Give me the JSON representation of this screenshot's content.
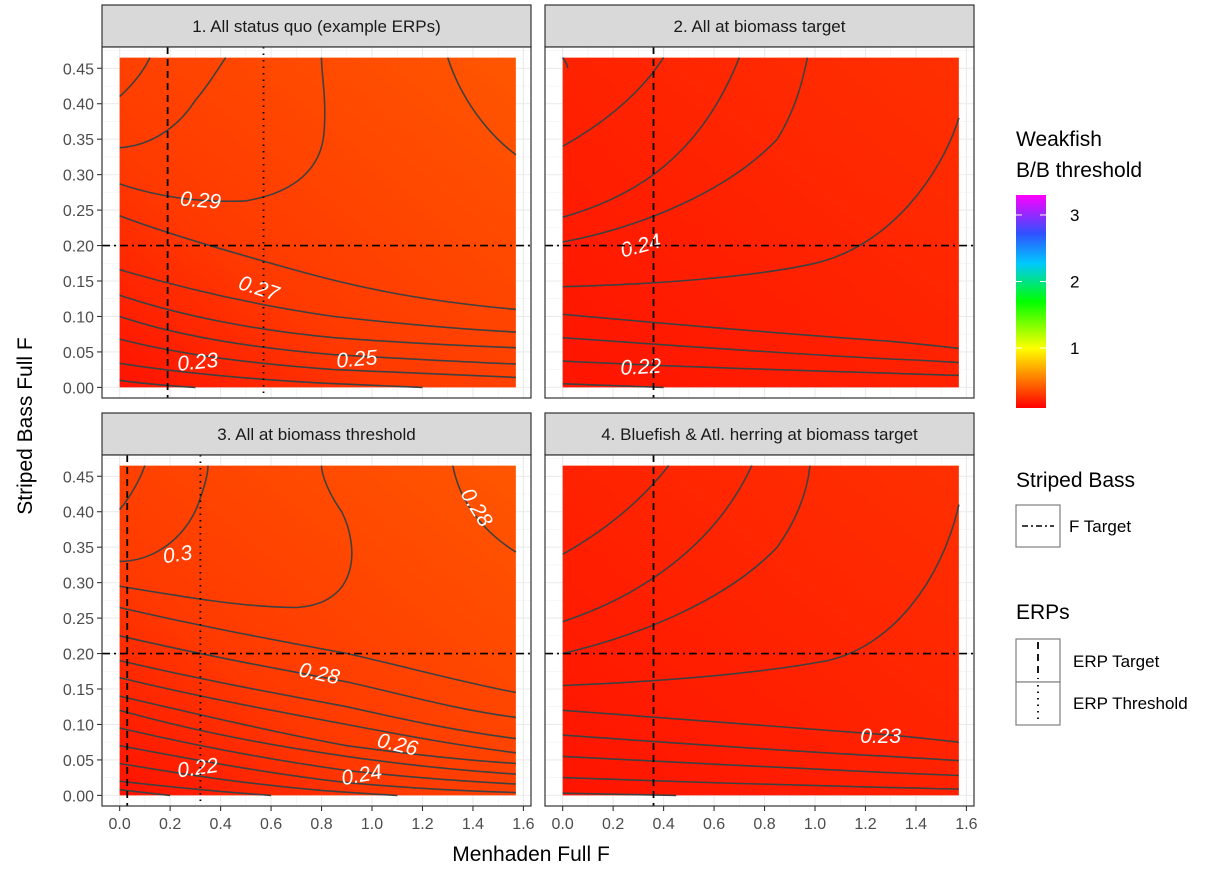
{
  "chart_data": {
    "type": "heatmap",
    "xlabel": "Menhaden Full F",
    "ylabel": "Striped Bass Full F",
    "x_ticks": [
      "0.0",
      "0.2",
      "0.4",
      "0.6",
      "0.8",
      "1.0",
      "1.2",
      "1.4",
      "1.6"
    ],
    "y_ticks": [
      "0.00",
      "0.05",
      "0.10",
      "0.15",
      "0.20",
      "0.25",
      "0.30",
      "0.35",
      "0.40",
      "0.45"
    ],
    "xlim": [
      -0.07,
      1.63
    ],
    "ylim": [
      -0.015,
      0.48
    ],
    "grid": true,
    "striped_bass_f_target": 0.2,
    "legend": {
      "colorbar_title_line1": "Weakfish",
      "colorbar_title_line2": "B/B threshold",
      "colorbar_ticks": [
        "1",
        "2",
        "3"
      ],
      "colorbar_tick_values": [
        1,
        2,
        3
      ],
      "colorbar_range": [
        0.1,
        3.3
      ],
      "colorbar_colors": [
        "#ff0000",
        "#ff7f00",
        "#ffff00",
        "#00ff00",
        "#0080ff",
        "#3050ff",
        "#ff00ff"
      ],
      "striped_bass_title": "Striped Bass",
      "striped_bass_item": "F Target",
      "erps_title": "ERPs",
      "erps_items": [
        "ERP Target",
        "ERP Threshold"
      ],
      "placement": "right"
    },
    "panels": [
      {
        "title": "1. All status quo (example ERPs)",
        "erp_target": 0.19,
        "erp_threshold": 0.57,
        "labels": [
          {
            "text": "0.29",
            "x": 0.32,
            "y": 0.262,
            "angle": 5
          },
          {
            "text": "0.27",
            "x": 0.55,
            "y": 0.138,
            "angle": 18
          },
          {
            "text": "0.23",
            "x": 0.31,
            "y": 0.034,
            "angle": -6
          },
          {
            "text": "0.25",
            "x": 0.94,
            "y": 0.038,
            "angle": -5
          }
        ]
      },
      {
        "title": "2. All at biomass target",
        "erp_target": 0.36,
        "labels": [
          {
            "text": "0.24",
            "x": 0.31,
            "y": 0.198,
            "angle": -15
          },
          {
            "text": "0.22",
            "x": 0.31,
            "y": 0.027,
            "angle": -3
          }
        ]
      },
      {
        "title": "3. All at biomass threshold",
        "erp_target": 0.03,
        "erp_threshold": 0.32,
        "labels": [
          {
            "text": "0.3",
            "x": 0.23,
            "y": 0.338,
            "angle": -8
          },
          {
            "text": "0.28",
            "x": 1.41,
            "y": 0.405,
            "angle": 58
          },
          {
            "text": "0.28",
            "x": 0.79,
            "y": 0.17,
            "angle": 12
          },
          {
            "text": "0.26",
            "x": 1.1,
            "y": 0.07,
            "angle": 13
          },
          {
            "text": "0.22",
            "x": 0.31,
            "y": 0.037,
            "angle": -8
          },
          {
            "text": "0.24",
            "x": 0.96,
            "y": 0.027,
            "angle": -10
          }
        ]
      },
      {
        "title": "4. Bluefish & Atl. herring at biomass target",
        "erp_target": 0.36,
        "labels": [
          {
            "text": "0.23",
            "x": 1.26,
            "y": 0.082,
            "angle": 0
          }
        ]
      }
    ]
  }
}
